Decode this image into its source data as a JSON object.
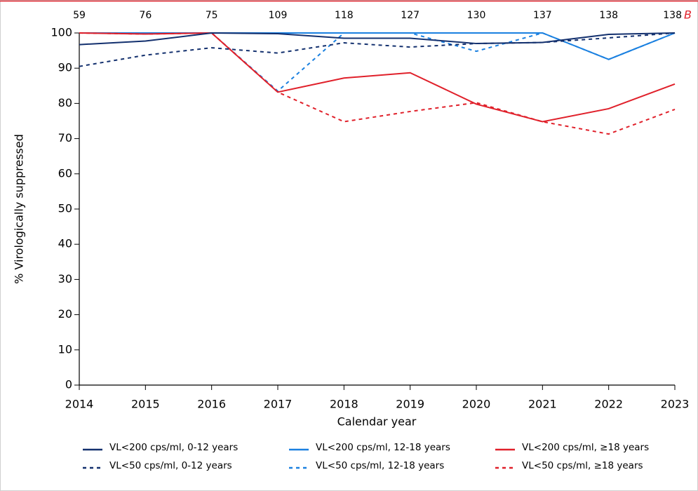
{
  "chart_data": {
    "type": "line",
    "panel_label": "B",
    "xlabel": "Calendar year",
    "ylabel": "% Virologically suppressed",
    "x": [
      2014,
      2015,
      2016,
      2017,
      2018,
      2019,
      2020,
      2021,
      2022,
      2023
    ],
    "top_labels": [
      59,
      76,
      75,
      109,
      118,
      127,
      130,
      137,
      138,
      138
    ],
    "xlim": [
      2014,
      2023
    ],
    "xticks": [
      2014,
      2015,
      2016,
      2017,
      2018,
      2019,
      2020,
      2021,
      2022,
      2023
    ],
    "ylim": [
      0,
      100
    ],
    "yticks": [
      0,
      10,
      20,
      30,
      40,
      50,
      60,
      70,
      80,
      90,
      100
    ],
    "series": [
      {
        "name": "VL<200 cps/ml, 0-12 years",
        "color": "#13306e",
        "linestyle": "solid",
        "values": [
          96.7,
          97.7,
          100,
          99.8,
          98.5,
          98.5,
          97,
          97.3,
          99.6,
          100
        ]
      },
      {
        "name": "VL<200 cps/ml, 12-18 years",
        "color": "#1a80e0",
        "linestyle": "solid",
        "values": [
          100,
          100,
          100,
          100,
          100,
          100,
          100,
          100,
          92.5,
          100
        ]
      },
      {
        "name": "VL<200 cps/ml, ≥18 years",
        "color": "#e0202a",
        "linestyle": "solid",
        "values": [
          100,
          99.7,
          100,
          83.2,
          87.2,
          88.7,
          79.8,
          74.8,
          78.5,
          85.5
        ]
      },
      {
        "name": "VL<50 cps/ml, 0-12 years",
        "color": "#13306e",
        "linestyle": "dashed",
        "values": [
          90.5,
          93.7,
          95.8,
          94.3,
          97.2,
          96,
          97,
          97.3,
          98.6,
          100
        ]
      },
      {
        "name": "VL<50 cps/ml, 12-18 years",
        "color": "#1a80e0",
        "linestyle": "dashed",
        "values": [
          100,
          100,
          100,
          83.5,
          100,
          100,
          94.8,
          100,
          92.5,
          100
        ]
      },
      {
        "name": "VL<50 cps/ml, ≥18 years",
        "color": "#e0202a",
        "linestyle": "dashed",
        "values": [
          100,
          99.7,
          100,
          83.2,
          74.8,
          77.7,
          80.2,
          74.8,
          71.3,
          78.3
        ]
      }
    ]
  }
}
